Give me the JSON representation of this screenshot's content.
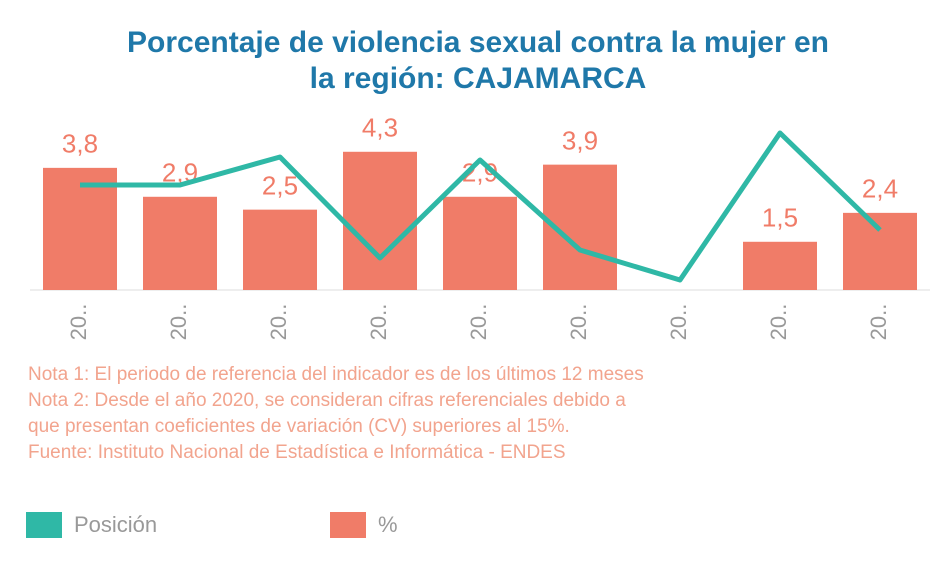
{
  "chart_data": {
    "type": "bar",
    "title": "Porcentaje de violencia sexual contra la mujer en la región: CAJAMARCA",
    "categories": [
      "20..",
      "20..",
      "20..",
      "20..",
      "20..",
      "20..",
      "20..",
      "20..",
      "20.."
    ],
    "ylim": [
      0,
      5.6
    ],
    "y2lim": [
      0,
      18
    ],
    "series": [
      {
        "name": "%",
        "type": "bar",
        "color": "#f07c68",
        "values": [
          3.8,
          2.9,
          2.5,
          4.3,
          2.9,
          3.9,
          null,
          1.5,
          2.4
        ],
        "value_labels": [
          "3,8",
          "2,9",
          "2,5",
          "4,3",
          "2,9",
          "3,9",
          null,
          "1,5",
          "2,4"
        ]
      },
      {
        "name": "Posición",
        "type": "line",
        "axis": "y2",
        "color": "#2fb8a6",
        "values": [
          10.5,
          10.5,
          13.3,
          3.2,
          13,
          4,
          1,
          15.7,
          6
        ]
      }
    ],
    "notes": [
      "Nota 1: El periodo de referencia del indicador es de los últimos 12 meses",
      "Nota 2: Desde el año 2020, se consideran cifras referenciales debido a",
      "que presentan coeficientes de variación (CV) superiores al 15%.",
      "Fuente: Instituto Nacional de Estadística e Informática - ENDES"
    ]
  }
}
